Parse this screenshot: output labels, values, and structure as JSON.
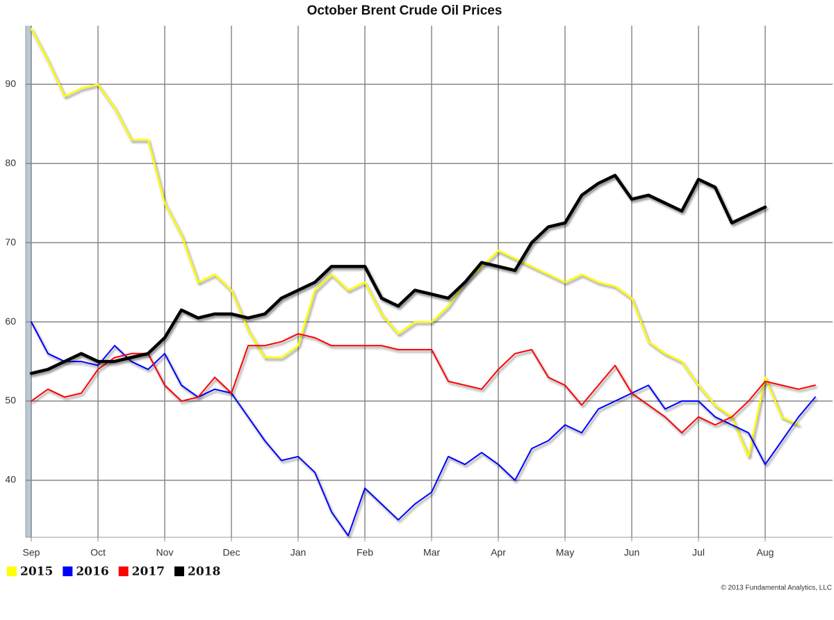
{
  "chart_data": {
    "type": "line",
    "title": "October Brent Crude Oil Prices",
    "credit": "© 2013 Fundamental Analytics, LLC",
    "categories": [
      "Sep",
      null,
      null,
      null,
      "Oct",
      null,
      null,
      null,
      "Nov",
      null,
      null,
      null,
      "Dec",
      null,
      null,
      null,
      "Jan",
      null,
      null,
      null,
      "Feb",
      null,
      null,
      null,
      "Mar",
      null,
      null,
      null,
      "Apr",
      null,
      null,
      null,
      "May",
      null,
      null,
      null,
      "Jun",
      null,
      null,
      null,
      "Jul",
      null,
      null,
      null,
      "Aug",
      null,
      null,
      null
    ],
    "series": [
      {
        "name": "2015",
        "color": "#ffff00",
        "width": 2.5,
        "values": [
          97,
          93,
          88.5,
          89.5,
          90,
          87,
          83,
          83,
          75,
          71,
          65,
          66,
          64,
          59,
          55.5,
          55.5,
          57,
          64,
          66,
          64,
          65,
          61,
          58.5,
          60,
          60,
          62,
          65,
          67,
          69,
          68,
          67,
          66,
          65,
          66,
          65,
          64.5,
          63,
          57.5,
          56,
          55,
          52,
          49.5,
          48,
          43,
          53,
          48,
          47,
          null
        ]
      },
      {
        "name": "2016",
        "color": "#0000ff",
        "width": 2,
        "values": [
          60,
          56,
          55,
          55,
          54.5,
          57,
          55,
          54,
          56,
          52,
          50.5,
          51.5,
          51,
          48,
          45,
          42.5,
          43,
          41,
          36,
          33,
          39,
          37,
          35,
          37,
          38.5,
          43,
          42,
          43.5,
          42,
          40,
          44,
          45,
          47,
          46,
          49,
          50,
          51,
          52,
          49,
          50,
          50,
          48,
          47,
          46,
          42,
          45,
          48,
          50.5
        ]
      },
      {
        "name": "2017",
        "color": "#ff0000",
        "width": 2,
        "values": [
          50,
          51.5,
          50.5,
          51,
          54,
          55.5,
          56,
          56,
          52,
          50,
          50.5,
          53,
          51,
          57,
          57,
          57.5,
          58.5,
          58,
          57,
          57,
          57,
          57,
          56.5,
          56.5,
          56.5,
          52.5,
          52,
          51.5,
          54,
          56,
          56.5,
          53,
          52,
          49.5,
          52,
          54.5,
          51,
          49.5,
          48,
          46,
          48,
          47,
          48,
          50,
          52.5,
          52,
          51.5,
          52
        ]
      },
      {
        "name": "2018",
        "color": "#000000",
        "width": 4.5,
        "values": [
          53.5,
          54,
          55,
          56,
          55,
          55,
          55.5,
          56,
          58,
          61.5,
          60.5,
          61,
          61,
          60.5,
          61,
          63,
          64,
          65,
          67,
          67,
          67,
          63,
          62,
          64,
          63.5,
          63,
          65,
          67.5,
          67,
          66.5,
          70,
          72,
          72.5,
          76,
          77.5,
          78.5,
          75.5,
          76,
          75,
          74,
          78,
          77,
          72.5,
          73.5,
          74.5,
          null,
          null,
          null
        ]
      }
    ],
    "ylim": [
      32.8,
      97.4
    ],
    "yticks": [
      40,
      50,
      60,
      70,
      80,
      90
    ],
    "grid": true,
    "legend": "bottom-left"
  }
}
